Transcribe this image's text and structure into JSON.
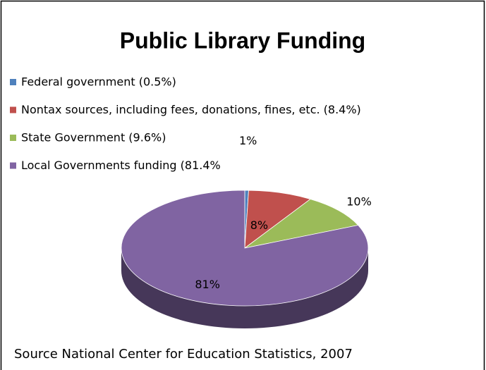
{
  "chart_data": {
    "type": "pie",
    "title": "Public Library Funding",
    "categories": [
      "Federal government (0.5%)",
      "Nontax sources, including fees, donations, fines, etc. (8.4%)",
      "State Government (9.6%)",
      "Local Governments funding (81.4%"
    ],
    "values": [
      0.5,
      8.4,
      9.6,
      81.4
    ],
    "value_labels": [
      "1%",
      "8%",
      "10%",
      "81%"
    ],
    "colors": [
      "#4f81bd",
      "#c0504d",
      "#9bbb59",
      "#8064a2"
    ],
    "legend": "top-left",
    "source": "Source National Center for Education Statistics, 2007"
  }
}
